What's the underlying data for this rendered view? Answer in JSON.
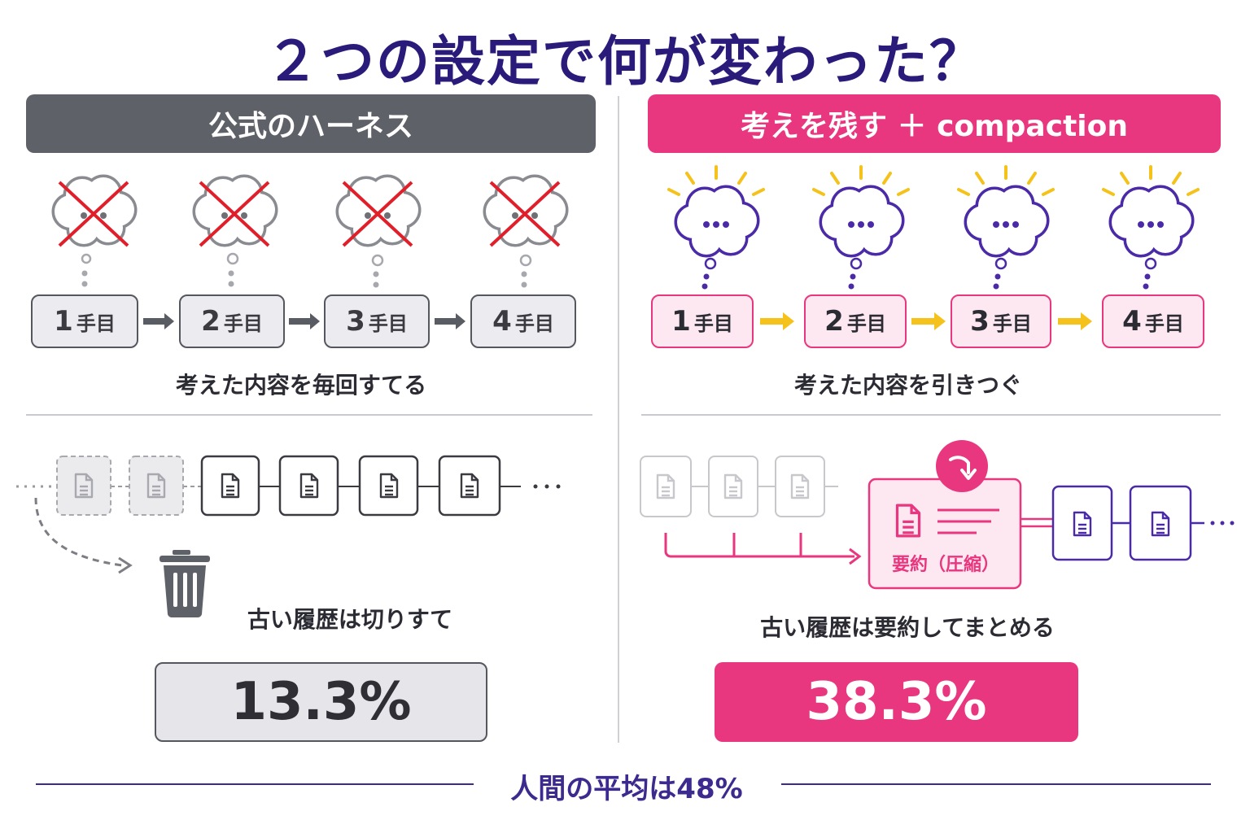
{
  "title": "２つの設定で何が変わった？",
  "left": {
    "header": "公式のハーネス",
    "steps": [
      {
        "num": "1",
        "label": "手目"
      },
      {
        "num": "2",
        "label": "手目"
      },
      {
        "num": "3",
        "label": "手目"
      },
      {
        "num": "4",
        "label": "手目"
      }
    ],
    "thought_caption": "考えた内容を毎回すてる",
    "history_caption": "古い履歴は切りすて",
    "result": "13.3%",
    "icons": {
      "thought": "crossed-out-thought-cloud-icon",
      "history": "document-icon",
      "discard": "trash-icon"
    }
  },
  "right": {
    "header": "考えを残す ＋ compaction",
    "steps": [
      {
        "num": "1",
        "label": "手目"
      },
      {
        "num": "2",
        "label": "手目"
      },
      {
        "num": "3",
        "label": "手目"
      },
      {
        "num": "4",
        "label": "手目"
      }
    ],
    "thought_caption": "考えた内容を引きつぐ",
    "summary_label": "要約（圧縮）",
    "history_caption": "古い履歴は要約してまとめる",
    "result": "38.3%",
    "icons": {
      "thought": "thinking-cloud-icon",
      "history": "document-icon",
      "summary": "summary-document-icon"
    }
  },
  "footer": "人間の平均は48%",
  "colors": {
    "title": "#2a1a7a",
    "left_accent": "#5f6168",
    "right_accent": "#e8367f",
    "purple": "#4b2aa8",
    "yellow": "#f5c21b",
    "cross": "#e01f2a"
  }
}
